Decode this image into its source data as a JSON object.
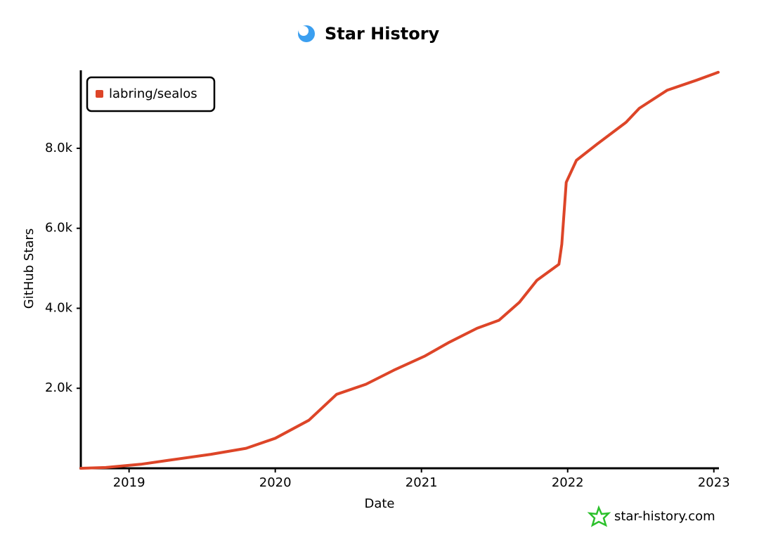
{
  "chart_data": {
    "type": "line",
    "title": "Star History",
    "x_label": "Date",
    "y_label": "GitHub Stars",
    "watermark": "star-history.com",
    "xlim": [
      2018.67,
      2023.03
    ],
    "xticks": [
      2019,
      2020,
      2021,
      2022,
      2023
    ],
    "ylim": [
      0,
      9950
    ],
    "yticks": [
      {
        "value": 2000,
        "label": "2.0k"
      },
      {
        "value": 4000,
        "label": "4.0k"
      },
      {
        "value": 6000,
        "label": "6.0k"
      },
      {
        "value": 8000,
        "label": "8.0k"
      }
    ],
    "legend": "top-left",
    "series": [
      {
        "name": "labring/sealos",
        "color": "#dd4528",
        "x": [
          2018.67,
          2018.84,
          2019.08,
          2019.27,
          2019.56,
          2019.8,
          2020.0,
          2020.23,
          2020.42,
          2020.62,
          2020.81,
          2021.02,
          2021.19,
          2021.38,
          2021.53,
          2021.67,
          2021.79,
          2021.94,
          2021.96,
          2021.99,
          2022.06,
          2022.2,
          2022.4,
          2022.49,
          2022.68,
          2022.88,
          2023.03
        ],
        "values": [
          0,
          20,
          100,
          200,
          350,
          500,
          750,
          1200,
          1850,
          2100,
          2450,
          2800,
          3150,
          3500,
          3700,
          4150,
          4700,
          5100,
          5600,
          7150,
          7700,
          8100,
          8650,
          9000,
          9450,
          9700,
          9900
        ]
      }
    ]
  }
}
